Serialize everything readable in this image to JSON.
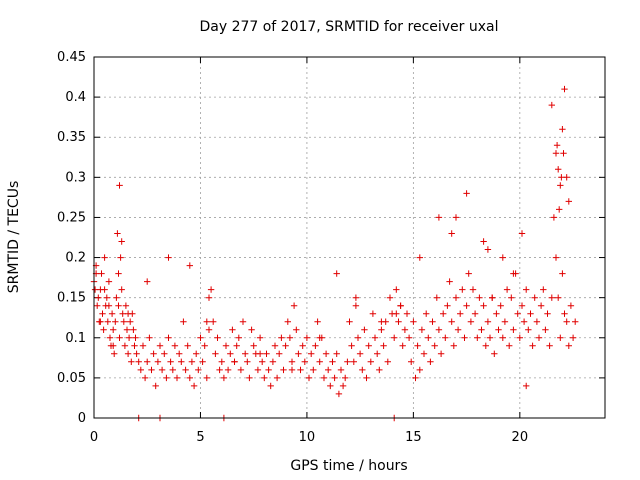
{
  "chart_data": {
    "type": "scatter",
    "title": "Day 277 of 2017, SRMTID for receiver uxal",
    "xlabel": "GPS time / hours",
    "ylabel": "SRMTID / TECUs",
    "xlim": [
      0,
      24
    ],
    "ylim": [
      0,
      0.45
    ],
    "xticks": [
      "0",
      "5",
      "10",
      "15",
      "20"
    ],
    "yticks": [
      "0",
      "0.05",
      "0.1",
      "0.15",
      "0.2",
      "0.25",
      "0.3",
      "0.35",
      "0.4",
      "0.45"
    ],
    "xtick_values": [
      0,
      5,
      10,
      15,
      20
    ],
    "ytick_values": [
      0,
      0.05,
      0.1,
      0.15,
      0.2,
      0.25,
      0.3,
      0.35,
      0.4,
      0.45
    ],
    "grid": true,
    "marker": "+",
    "color": "#e00000",
    "series": [
      {
        "name": "SRMTID",
        "x": [
          0.0,
          0.05,
          0.1,
          0.15,
          0.2,
          0.25,
          0.3,
          0.35,
          0.4,
          0.45,
          0.5,
          0.55,
          0.6,
          0.65,
          0.7,
          0.75,
          0.8,
          0.85,
          0.9,
          0.95,
          1.0,
          1.05,
          1.1,
          1.15,
          1.2,
          1.25,
          1.3,
          1.35,
          1.4,
          1.45,
          1.5,
          1.55,
          1.6,
          1.65,
          1.7,
          1.75,
          1.8,
          1.85,
          1.9,
          1.95,
          2.0,
          2.1,
          2.2,
          2.3,
          2.4,
          2.5,
          2.6,
          2.7,
          2.8,
          2.9,
          3.0,
          3.1,
          3.2,
          3.3,
          3.4,
          3.5,
          3.6,
          3.7,
          3.8,
          3.9,
          4.0,
          4.1,
          4.2,
          4.3,
          4.4,
          4.5,
          4.6,
          4.7,
          4.8,
          4.9,
          5.0,
          5.1,
          5.2,
          5.3,
          5.4,
          5.5,
          5.6,
          5.7,
          5.8,
          5.9,
          6.0,
          6.1,
          6.2,
          6.3,
          6.4,
          6.5,
          6.6,
          6.7,
          6.8,
          6.9,
          7.0,
          7.1,
          7.2,
          7.3,
          7.4,
          7.5,
          7.6,
          7.7,
          7.8,
          7.9,
          8.0,
          8.1,
          8.2,
          8.3,
          8.4,
          8.5,
          8.6,
          8.7,
          8.8,
          8.9,
          9.0,
          9.1,
          9.2,
          9.3,
          9.4,
          9.5,
          9.6,
          9.7,
          9.8,
          9.9,
          10.0,
          10.1,
          10.2,
          10.3,
          10.4,
          10.5,
          10.6,
          10.7,
          10.8,
          10.9,
          11.0,
          11.1,
          11.2,
          11.3,
          11.4,
          11.5,
          11.6,
          11.7,
          11.8,
          11.9,
          12.0,
          12.1,
          12.2,
          12.3,
          12.4,
          12.5,
          12.6,
          12.7,
          12.8,
          12.9,
          13.0,
          13.1,
          13.2,
          13.3,
          13.4,
          13.5,
          13.6,
          13.7,
          13.8,
          13.9,
          14.0,
          14.1,
          14.2,
          14.3,
          14.4,
          14.5,
          14.6,
          14.7,
          14.8,
          14.9,
          15.0,
          15.1,
          15.2,
          15.3,
          15.4,
          15.5,
          15.6,
          15.7,
          15.8,
          15.9,
          16.0,
          16.1,
          16.2,
          16.3,
          16.4,
          16.5,
          16.6,
          16.7,
          16.8,
          16.9,
          17.0,
          17.1,
          17.2,
          17.3,
          17.4,
          17.5,
          17.6,
          17.7,
          17.8,
          17.9,
          18.0,
          18.1,
          18.2,
          18.3,
          18.4,
          18.5,
          18.6,
          18.7,
          18.8,
          18.9,
          19.0,
          19.1,
          19.2,
          19.3,
          19.4,
          19.5,
          19.6,
          19.7,
          19.8,
          19.9,
          20.0,
          20.1,
          20.2,
          20.3,
          20.4,
          20.5,
          20.6,
          20.7,
          20.8,
          20.9,
          21.0,
          21.1,
          21.2,
          21.3,
          21.4,
          21.5,
          21.6,
          21.7,
          21.8,
          21.9,
          22.0,
          22.1,
          22.2,
          22.3,
          22.4,
          22.5,
          22.6,
          0.1,
          0.3,
          0.5,
          0.7,
          0.9,
          1.2,
          1.15,
          1.3,
          1.6,
          2.5,
          3.5,
          4.5,
          5.3,
          5.4,
          6.6,
          7.8,
          9.3,
          10.6,
          11.4,
          12.3,
          13.5,
          14.2,
          14.4,
          15.3,
          16.2,
          16.8,
          17.0,
          17.5,
          18.3,
          18.5,
          18.7,
          19.2,
          19.7,
          20.1,
          20.3,
          21.5,
          21.7,
          21.8,
          21.9,
          22.0,
          22.1,
          22.2,
          22.3,
          21.75,
          21.85,
          21.95,
          22.05,
          2.1,
          3.1,
          6.1,
          14.1
        ],
        "y": [
          0.17,
          0.16,
          0.19,
          0.14,
          0.15,
          0.12,
          0.16,
          0.18,
          0.13,
          0.11,
          0.2,
          0.14,
          0.15,
          0.12,
          0.17,
          0.1,
          0.09,
          0.13,
          0.11,
          0.08,
          0.12,
          0.15,
          0.23,
          0.18,
          0.1,
          0.2,
          0.16,
          0.13,
          0.12,
          0.09,
          0.14,
          0.11,
          0.08,
          0.1,
          0.12,
          0.07,
          0.13,
          0.11,
          0.09,
          0.1,
          0.08,
          0.07,
          0.06,
          0.09,
          0.05,
          0.07,
          0.1,
          0.06,
          0.08,
          0.04,
          0.07,
          0.09,
          0.06,
          0.08,
          0.05,
          0.1,
          0.07,
          0.06,
          0.09,
          0.05,
          0.08,
          0.07,
          0.12,
          0.06,
          0.09,
          0.05,
          0.07,
          0.04,
          0.08,
          0.06,
          0.1,
          0.07,
          0.09,
          0.05,
          0.11,
          0.16,
          0.12,
          0.08,
          0.1,
          0.06,
          0.07,
          0.05,
          0.09,
          0.06,
          0.08,
          0.11,
          0.07,
          0.09,
          0.1,
          0.06,
          0.12,
          0.08,
          0.07,
          0.05,
          0.11,
          0.09,
          0.08,
          0.06,
          0.1,
          0.07,
          0.05,
          0.08,
          0.06,
          0.04,
          0.07,
          0.09,
          0.05,
          0.08,
          0.1,
          0.06,
          0.09,
          0.12,
          0.1,
          0.07,
          0.14,
          0.11,
          0.08,
          0.06,
          0.09,
          0.07,
          0.1,
          0.05,
          0.08,
          0.06,
          0.09,
          0.12,
          0.07,
          0.1,
          0.05,
          0.08,
          0.06,
          0.04,
          0.07,
          0.05,
          0.08,
          0.03,
          0.06,
          0.04,
          0.05,
          0.07,
          0.12,
          0.09,
          0.07,
          0.14,
          0.1,
          0.08,
          0.06,
          0.11,
          0.05,
          0.09,
          0.07,
          0.13,
          0.1,
          0.08,
          0.06,
          0.11,
          0.09,
          0.12,
          0.07,
          0.15,
          0.13,
          0.1,
          0.16,
          0.12,
          0.14,
          0.09,
          0.11,
          0.13,
          0.1,
          0.07,
          0.12,
          0.05,
          0.09,
          0.06,
          0.11,
          0.08,
          0.13,
          0.1,
          0.07,
          0.12,
          0.09,
          0.15,
          0.11,
          0.08,
          0.13,
          0.1,
          0.14,
          0.17,
          0.12,
          0.09,
          0.15,
          0.11,
          0.13,
          0.16,
          0.1,
          0.14,
          0.18,
          0.12,
          0.16,
          0.13,
          0.1,
          0.15,
          0.11,
          0.14,
          0.09,
          0.12,
          0.1,
          0.15,
          0.08,
          0.13,
          0.11,
          0.14,
          0.1,
          0.12,
          0.16,
          0.09,
          0.15,
          0.11,
          0.18,
          0.13,
          0.1,
          0.14,
          0.12,
          0.16,
          0.11,
          0.13,
          0.09,
          0.15,
          0.12,
          0.1,
          0.14,
          0.16,
          0.11,
          0.13,
          0.09,
          0.15,
          0.25,
          0.2,
          0.15,
          0.1,
          0.18,
          0.13,
          0.12,
          0.09,
          0.14,
          0.1,
          0.12,
          0.18,
          0.12,
          0.16,
          0.14,
          0.09,
          0.29,
          0.14,
          0.22,
          0.13,
          0.17,
          0.2,
          0.19,
          0.12,
          0.15,
          0.07,
          0.08,
          0.06,
          0.1,
          0.18,
          0.15,
          0.12,
          0.13,
          0.14,
          0.2,
          0.25,
          0.23,
          0.25,
          0.28,
          0.22,
          0.21,
          0.15,
          0.2,
          0.18,
          0.23,
          0.04,
          0.39,
          0.33,
          0.31,
          0.29,
          0.36,
          0.41,
          0.3,
          0.27,
          0.34,
          0.26,
          0.3,
          0.33,
          0.0,
          0.0,
          0.0,
          0.0
        ]
      }
    ]
  }
}
